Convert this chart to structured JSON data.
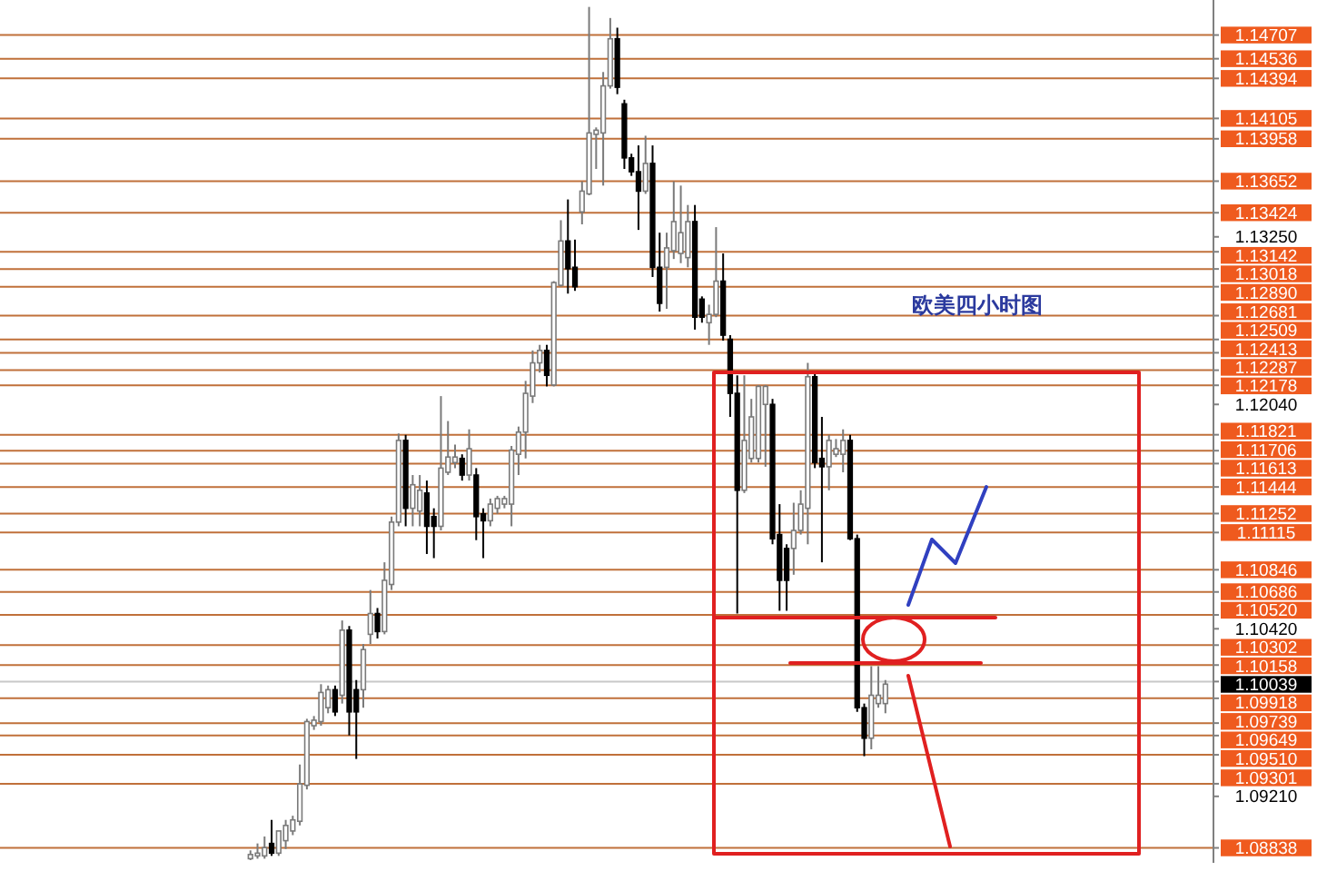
{
  "chart_data": {
    "type": "candlestick",
    "categories": [
      null,
      null,
      null,
      null,
      null,
      null,
      null,
      null,
      null,
      null,
      null,
      null,
      null,
      null,
      null,
      null,
      null,
      null,
      null,
      null,
      null,
      null,
      null,
      null,
      null,
      null,
      null,
      null,
      null,
      null,
      null,
      null,
      null,
      null,
      null,
      null,
      null,
      null,
      null,
      null,
      null,
      null,
      null,
      null,
      null,
      null,
      null,
      null,
      null,
      null,
      null,
      null,
      null,
      null,
      null,
      null,
      null,
      null,
      null,
      null,
      null,
      null,
      null,
      null,
      null,
      null,
      null,
      null,
      null,
      null,
      null,
      null,
      null,
      null,
      null,
      null,
      null,
      null,
      null,
      null,
      null,
      null,
      null,
      null,
      null,
      null,
      null,
      null,
      null,
      null,
      null,
      null,
      null,
      null,
      null,
      null,
      null,
      null,
      null,
      null,
      null,
      null,
      null,
      null,
      null,
      null,
      null,
      null,
      null,
      null,
      null,
      null,
      null,
      null,
      null,
      null,
      null,
      null,
      null,
      null,
      null,
      null,
      null,
      null,
      null,
      null,
      null,
      null,
      null,
      null,
      null,
      null,
      null,
      null,
      null,
      null,
      null,
      null,
      null,
      null,
      null,
      null,
      null,
      null,
      null,
      null,
      null,
      null,
      null,
      null,
      null,
      null,
      null,
      null,
      null,
      null,
      null,
      null,
      null,
      null,
      null,
      null,
      null,
      null,
      null,
      null,
      null,
      null,
      null,
      null,
      null,
      null
    ],
    "ohlc": [
      null,
      null,
      null,
      null,
      null,
      null,
      null,
      null,
      null,
      null,
      null,
      null,
      null,
      null,
      null,
      null,
      null,
      null,
      null,
      null,
      null,
      null,
      null,
      null,
      null,
      null,
      null,
      null,
      null,
      null,
      null,
      null,
      null,
      null,
      null,
      [
        1.0876,
        1.0882,
        1.0875,
        1.0879
      ],
      [
        1.0878,
        1.0887,
        1.0876,
        1.088
      ],
      [
        1.0878,
        1.0892,
        1.0876,
        1.0884
      ],
      [
        1.0887,
        1.0904,
        1.0878,
        1.088
      ],
      [
        1.088,
        1.0896,
        1.0878,
        1.0896
      ],
      [
        1.0889,
        1.0904,
        1.0883,
        1.09
      ],
      [
        1.0896,
        1.0907,
        1.0893,
        1.0904
      ],
      [
        1.0903,
        1.0944,
        1.09,
        1.093
      ],
      [
        1.0929,
        1.0977,
        1.0926,
        1.0975
      ],
      [
        1.0972,
        1.0979,
        1.0969,
        1.0976
      ],
      [
        1.0975,
        1.1002,
        1.0972,
        1.0996
      ],
      [
        1.0985,
        1.1001,
        1.0981,
        1.0998
      ],
      [
        1.0998,
        1.1001,
        1.0979,
        1.0982
      ],
      [
        1.0994,
        1.1048,
        1.0988,
        1.1041
      ],
      [
        1.1041,
        1.1044,
        1.0965,
        1.0982
      ],
      [
        1.0998,
        1.1005,
        1.0948,
        1.0982
      ],
      [
        1.0998,
        1.1031,
        1.0985,
        1.1027
      ],
      [
        1.1038,
        1.107,
        1.1031,
        1.1053
      ],
      [
        1.1053,
        1.1057,
        1.1035,
        1.104
      ],
      [
        1.104,
        1.109,
        1.1038,
        1.1077
      ],
      [
        1.1074,
        1.1123,
        1.107,
        1.1119
      ],
      [
        1.1119,
        1.1183,
        1.1116,
        1.1178
      ],
      [
        1.1178,
        1.1182,
        1.1116,
        1.1129
      ],
      [
        1.1129,
        1.1153,
        1.1116,
        1.1146
      ],
      [
        1.1127,
        1.1153,
        1.1116,
        1.1142
      ],
      [
        1.114,
        1.1149,
        1.1096,
        1.1116
      ],
      [
        1.1123,
        1.1129,
        1.1093,
        1.1116
      ],
      [
        1.1116,
        1.121,
        1.1113,
        1.1158
      ],
      [
        1.1155,
        1.1192,
        1.1153,
        1.1166
      ],
      [
        1.1162,
        1.1175,
        1.1158,
        1.1166
      ],
      [
        1.1165,
        1.1168,
        1.1149,
        1.1153
      ],
      [
        1.1153,
        1.1186,
        1.1149,
        1.1172
      ],
      [
        1.1153,
        1.1158,
        1.1106,
        1.1123
      ],
      [
        1.1125,
        1.1129,
        1.1093,
        1.112
      ],
      [
        1.112,
        1.1136,
        1.1116,
        1.1132
      ],
      [
        1.1129,
        1.1138,
        1.1125,
        1.1136
      ],
      [
        1.1132,
        1.1138,
        1.1129,
        1.1136
      ],
      [
        1.1132,
        1.1174,
        1.1116,
        1.1171
      ],
      [
        1.1168,
        1.1188,
        1.1153,
        1.1184
      ],
      [
        1.1184,
        1.1221,
        1.1165,
        1.1212
      ],
      [
        1.121,
        1.1243,
        1.1205,
        1.1234
      ],
      [
        1.1234,
        1.1247,
        1.1227,
        1.1243
      ],
      [
        1.1243,
        1.1247,
        1.1217,
        1.1225
      ],
      [
        1.1218,
        1.1293,
        1.1217,
        1.1292
      ],
      [
        1.129,
        1.1337,
        1.1289,
        1.1322
      ],
      [
        1.1322,
        1.1352,
        1.1284,
        1.1302
      ],
      [
        1.1303,
        1.1323,
        1.1286,
        1.1289
      ],
      [
        1.1343,
        1.1365,
        1.1334,
        1.1358
      ],
      [
        1.1356,
        1.1491,
        1.1355,
        1.14
      ],
      [
        1.1399,
        1.1404,
        1.1374,
        1.1402
      ],
      [
        1.14,
        1.1444,
        1.1362,
        1.1434
      ],
      [
        1.1434,
        1.1483,
        1.1432,
        1.1468
      ],
      [
        1.1468,
        1.1476,
        1.1428,
        1.1433
      ],
      [
        1.1421,
        1.1424,
        1.1374,
        1.1382
      ],
      [
        1.1382,
        1.1385,
        1.1369,
        1.1372
      ],
      [
        1.1372,
        1.1391,
        1.133,
        1.1358
      ],
      [
        1.1358,
        1.1398,
        1.1356,
        1.1378
      ],
      [
        1.1378,
        1.1391,
        1.1296,
        1.1303
      ],
      [
        1.1303,
        1.1328,
        1.1271,
        1.1277
      ],
      [
        1.1303,
        1.1328,
        1.1273,
        1.1317
      ],
      [
        1.1315,
        1.1365,
        1.1309,
        1.1336
      ],
      [
        1.1313,
        1.1362,
        1.1306,
        1.1328
      ],
      [
        1.131,
        1.1348,
        1.1303,
        1.1336
      ],
      [
        1.1336,
        1.1348,
        1.1258,
        1.1267
      ],
      [
        1.128,
        1.1282,
        1.1263,
        1.1267
      ],
      [
        1.1263,
        1.1276,
        1.1247,
        1.1269
      ],
      [
        1.1269,
        1.1332,
        1.1267,
        1.1293
      ],
      [
        1.1293,
        1.1313,
        1.125,
        1.1254
      ],
      [
        1.1251,
        1.1254,
        1.1195,
        1.1212
      ],
      [
        1.1212,
        1.1225,
        1.1053,
        1.1142
      ],
      [
        1.1142,
        1.1225,
        1.114,
        1.1178
      ],
      [
        1.1165,
        1.1208,
        1.1162,
        1.1195
      ],
      [
        1.1165,
        1.1218,
        1.1162,
        1.1217
      ],
      [
        1.1204,
        1.1218,
        1.1159,
        1.1217
      ],
      [
        1.1204,
        1.1208,
        1.1103,
        1.1107
      ],
      [
        1.111,
        1.1132,
        1.1055,
        1.1077
      ],
      [
        1.11,
        1.1103,
        1.1055,
        1.1077
      ],
      [
        1.11,
        1.1133,
        1.1081,
        1.1113
      ],
      [
        1.1113,
        1.1142,
        1.111,
        1.1132
      ],
      [
        1.1129,
        1.1234,
        1.1103,
        1.1224
      ],
      [
        1.1224,
        1.1226,
        1.1158,
        1.1162
      ],
      [
        1.1165,
        1.1195,
        1.109,
        1.1159
      ],
      [
        1.1159,
        1.1182,
        1.1142,
        1.1178
      ],
      [
        1.1168,
        1.1179,
        1.1166,
        1.1172
      ],
      [
        1.1168,
        1.1186,
        1.1155,
        1.1178
      ],
      [
        1.1178,
        1.1182,
        1.1106,
        1.1107
      ],
      [
        1.1107,
        1.111,
        1.0982,
        1.0985
      ],
      [
        1.0985,
        1.0988,
        1.095,
        1.0963
      ],
      [
        1.0963,
        1.1015,
        1.0955,
        1.0994
      ],
      [
        1.0988,
        1.1015,
        1.0985,
        1.0994
      ],
      [
        1.0988,
        1.1005,
        1.0981,
        1.1002
      ],
      null,
      null,
      null,
      null,
      null,
      null,
      null,
      null,
      null,
      null,
      null,
      null,
      null,
      null,
      null,
      null,
      null,
      null,
      null,
      null,
      null,
      null,
      null,
      null,
      null,
      null,
      null,
      null,
      null,
      null,
      null,
      null,
      null,
      null,
      null,
      null,
      null,
      null,
      null,
      null,
      null,
      null,
      null,
      null,
      null,
      null
    ],
    "ylim": [
      1.0873,
      1.1496
    ],
    "yticks": [
      {
        "value": 1.1325,
        "label": "1.13250"
      },
      {
        "value": 1.1204,
        "label": "1.12040"
      },
      {
        "value": 1.1042,
        "label": "1.10420"
      },
      {
        "value": 1.0921,
        "label": "1.09210"
      }
    ],
    "ref_lines": [
      {
        "axis": "y",
        "value": 1.14707,
        "label": "1.14707",
        "color": "#c0703a"
      },
      {
        "axis": "y",
        "value": 1.14536,
        "label": "1.14536",
        "color": "#c0703a"
      },
      {
        "axis": "y",
        "value": 1.14394,
        "label": "1.14394",
        "color": "#c0703a"
      },
      {
        "axis": "y",
        "value": 1.14105,
        "label": "1.14105",
        "color": "#c0703a"
      },
      {
        "axis": "y",
        "value": 1.13958,
        "label": "1.13958",
        "color": "#c0703a"
      },
      {
        "axis": "y",
        "value": 1.13652,
        "label": "1.13652",
        "color": "#c0703a"
      },
      {
        "axis": "y",
        "value": 1.13424,
        "label": "1.13424",
        "color": "#c0703a"
      },
      {
        "axis": "y",
        "value": 1.13142,
        "label": "1.13142",
        "color": "#c0703a"
      },
      {
        "axis": "y",
        "value": 1.13018,
        "label": "1.13018",
        "color": "#c0703a"
      },
      {
        "axis": "y",
        "value": 1.1289,
        "label": "1.12890",
        "color": "#c0703a"
      },
      {
        "axis": "y",
        "value": 1.12681,
        "label": "1.12681",
        "color": "#c0703a"
      },
      {
        "axis": "y",
        "value": 1.12509,
        "label": "1.12509",
        "color": "#c0703a"
      },
      {
        "axis": "y",
        "value": 1.12413,
        "label": "1.12413",
        "color": "#c0703a"
      },
      {
        "axis": "y",
        "value": 1.12287,
        "label": "1.12287",
        "color": "#c0703a"
      },
      {
        "axis": "y",
        "value": 1.12178,
        "label": "1.12178",
        "color": "#c0703a"
      },
      {
        "axis": "y",
        "value": 1.11821,
        "label": "1.11821",
        "color": "#c0703a"
      },
      {
        "axis": "y",
        "value": 1.11706,
        "label": "1.11706",
        "color": "#c0703a"
      },
      {
        "axis": "y",
        "value": 1.11613,
        "label": "1.11613",
        "color": "#c0703a"
      },
      {
        "axis": "y",
        "value": 1.11444,
        "label": "1.11444",
        "color": "#c0703a"
      },
      {
        "axis": "y",
        "value": 1.11252,
        "label": "1.11252",
        "color": "#c0703a"
      },
      {
        "axis": "y",
        "value": 1.11115,
        "label": "1.11115",
        "color": "#c0703a"
      },
      {
        "axis": "y",
        "value": 1.10846,
        "label": "1.10846",
        "color": "#c0703a"
      },
      {
        "axis": "y",
        "value": 1.10686,
        "label": "1.10686",
        "color": "#c0703a"
      },
      {
        "axis": "y",
        "value": 1.1052,
        "label": "1.10520",
        "color": "#c0703a"
      },
      {
        "axis": "y",
        "value": 1.10302,
        "label": "1.10302",
        "color": "#c0703a"
      },
      {
        "axis": "y",
        "value": 1.10158,
        "label": "1.10158",
        "color": "#c0703a"
      },
      {
        "axis": "y",
        "value": 1.10039,
        "label": "1.10039",
        "color": "#c8c8c8"
      },
      {
        "axis": "y",
        "value": 1.09918,
        "label": "1.09918",
        "color": "#c0703a"
      },
      {
        "axis": "y",
        "value": 1.09739,
        "label": "1.09739",
        "color": "#c0703a"
      },
      {
        "axis": "y",
        "value": 1.09649,
        "label": "1.09649",
        "color": "#c0703a"
      },
      {
        "axis": "y",
        "value": 1.0951,
        "label": "1.09510",
        "color": "#c0703a"
      },
      {
        "axis": "y",
        "value": 1.09301,
        "label": "1.09301",
        "color": "#c0703a"
      },
      {
        "axis": "y",
        "value": 1.08838,
        "label": "1.08838",
        "color": "#c0703a"
      }
    ],
    "annotations": [
      "欧美四小时图"
    ]
  }
}
